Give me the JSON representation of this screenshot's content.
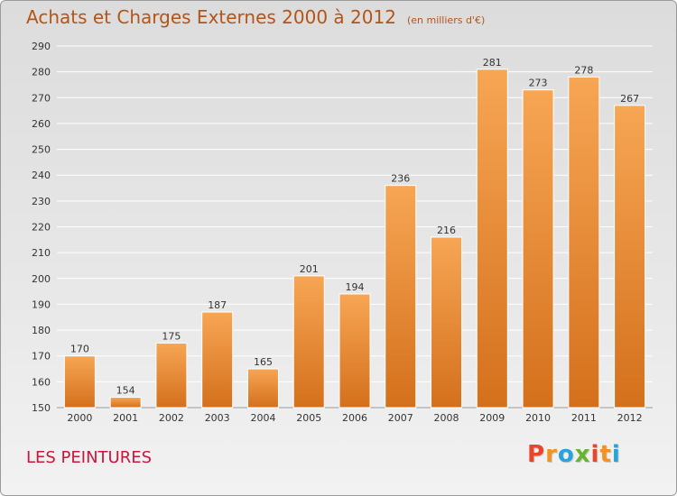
{
  "header": {
    "title": "Achats et Charges Externes 2000 à 2012",
    "subtitle": "(en milliers d'€)"
  },
  "footer": {
    "commune": "LES PEINTURES",
    "logo_letters": [
      "P",
      "r",
      "o",
      "x",
      "i",
      "t",
      "i"
    ],
    "logo_colors": [
      "#e8462b",
      "#f39221",
      "#29a3db",
      "#69b42e",
      "#e8462b",
      "#f39221",
      "#29a3db"
    ]
  },
  "colors": {
    "bar_top": "#f7a654",
    "bar_bottom": "#d4701c",
    "grid": "#ffffff",
    "title": "#b45418",
    "commune": "#c9173c"
  },
  "chart_data": {
    "type": "bar",
    "title": "Achats et Charges Externes 2000 à 2012",
    "subtitle": "(en milliers d'€)",
    "xlabel": "",
    "ylabel": "",
    "categories": [
      "2000",
      "2001",
      "2002",
      "2003",
      "2004",
      "2005",
      "2006",
      "2007",
      "2008",
      "2009",
      "2010",
      "2011",
      "2012"
    ],
    "values": [
      170,
      154,
      175,
      187,
      165,
      201,
      194,
      236,
      216,
      281,
      273,
      278,
      267
    ],
    "ylim": [
      150,
      290
    ],
    "yticks": [
      150,
      160,
      170,
      180,
      190,
      200,
      210,
      220,
      230,
      240,
      250,
      260,
      270,
      280,
      290
    ],
    "grid": true,
    "data_labels": true
  }
}
